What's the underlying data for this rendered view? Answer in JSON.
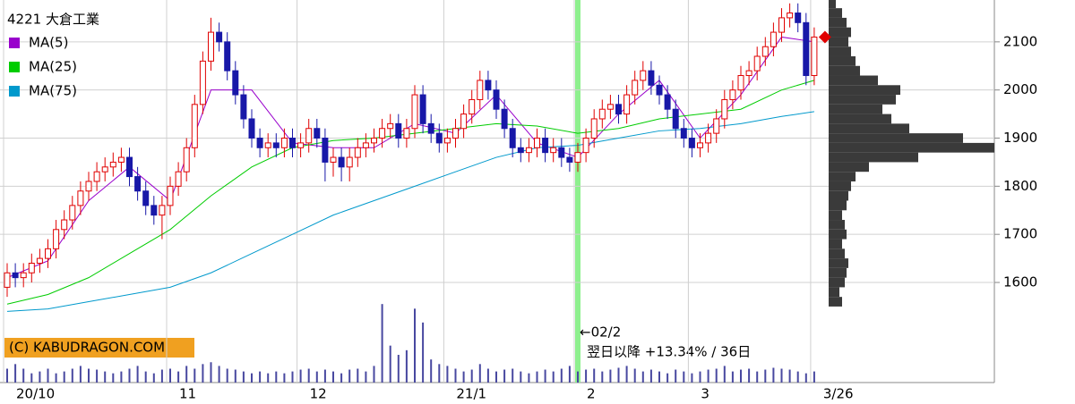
{
  "chart_data": {
    "type": "candlestick",
    "title": "4221 大倉工業",
    "categories": [
      "20/10",
      null,
      null,
      null,
      null,
      null,
      null,
      null,
      null,
      null,
      null,
      null,
      null,
      null,
      null,
      null,
      null,
      null,
      null,
      null,
      "11",
      null,
      null,
      null,
      null,
      null,
      null,
      null,
      null,
      null,
      null,
      null,
      null,
      null,
      null,
      null,
      "12",
      null,
      null,
      null,
      null,
      null,
      null,
      null,
      null,
      null,
      null,
      null,
      null,
      null,
      null,
      null,
      null,
      null,
      "21/1",
      null,
      null,
      null,
      null,
      null,
      null,
      null,
      null,
      null,
      null,
      null,
      null,
      null,
      null,
      null,
      "2",
      null,
      null,
      null,
      null,
      null,
      null,
      null,
      null,
      null,
      null,
      null,
      null,
      null,
      "3",
      null,
      null,
      null,
      null,
      null,
      null,
      null,
      null,
      null,
      null,
      null,
      null,
      null,
      null,
      "3/26"
    ],
    "open": [
      1590,
      1620,
      1610,
      1620,
      1640,
      1650,
      1670,
      1710,
      1730,
      1760,
      1790,
      1810,
      1830,
      1840,
      1850,
      1860,
      1820,
      1790,
      1760,
      1740,
      1760,
      1800,
      1830,
      1880,
      1970,
      2060,
      2120,
      2100,
      2040,
      1990,
      1940,
      1900,
      1880,
      1890,
      1880,
      1900,
      1880,
      1890,
      1920,
      1900,
      1850,
      1860,
      1840,
      1860,
      1880,
      1890,
      1900,
      1920,
      1930,
      1900,
      1920,
      1990,
      1930,
      1910,
      1890,
      1900,
      1920,
      1950,
      1980,
      2020,
      2000,
      1960,
      1920,
      1880,
      1870,
      1880,
      1900,
      1870,
      1880,
      1860,
      1850,
      1870,
      1900,
      1940,
      1960,
      1970,
      1950,
      1990,
      2020,
      2040,
      2010,
      1990,
      1960,
      1920,
      1900,
      1880,
      1890,
      1910,
      1940,
      1980,
      2000,
      2030,
      2040,
      2070,
      2090,
      2120,
      2150,
      2160,
      2140,
      2030
    ],
    "high": [
      1640,
      1640,
      1640,
      1660,
      1670,
      1690,
      1730,
      1750,
      1780,
      1810,
      1830,
      1850,
      1860,
      1870,
      1880,
      1880,
      1840,
      1810,
      1780,
      1780,
      1820,
      1850,
      1900,
      1990,
      2080,
      2150,
      2140,
      2120,
      2060,
      2010,
      1960,
      1920,
      1910,
      1910,
      1920,
      1920,
      1910,
      1940,
      1940,
      1920,
      1880,
      1880,
      1880,
      1900,
      1910,
      1920,
      1940,
      1950,
      1950,
      1940,
      2010,
      2010,
      1950,
      1930,
      1920,
      1940,
      1970,
      2000,
      2040,
      2040,
      2020,
      1980,
      1940,
      1900,
      1900,
      1920,
      1920,
      1900,
      1900,
      1880,
      1890,
      1920,
      1960,
      1980,
      1990,
      1990,
      2010,
      2040,
      2060,
      2060,
      2030,
      2010,
      1980,
      1940,
      1920,
      1910,
      1930,
      1960,
      2000,
      2020,
      2050,
      2060,
      2090,
      2110,
      2140,
      2170,
      2180,
      2180,
      2160,
      2130
    ],
    "low": [
      1570,
      1590,
      1590,
      1600,
      1620,
      1630,
      1650,
      1690,
      1710,
      1740,
      1770,
      1790,
      1810,
      1820,
      1830,
      1800,
      1770,
      1740,
      1720,
      1690,
      1740,
      1780,
      1810,
      1860,
      1950,
      2040,
      2080,
      2020,
      1970,
      1920,
      1880,
      1860,
      1860,
      1860,
      1860,
      1860,
      1860,
      1870,
      1880,
      1810,
      1820,
      1810,
      1810,
      1840,
      1860,
      1870,
      1880,
      1900,
      1880,
      1880,
      1900,
      1910,
      1890,
      1870,
      1870,
      1880,
      1900,
      1930,
      1960,
      1980,
      1940,
      1900,
      1860,
      1850,
      1850,
      1860,
      1850,
      1850,
      1840,
      1830,
      1830,
      1850,
      1880,
      1920,
      1940,
      1930,
      1930,
      1970,
      2000,
      1990,
      1970,
      1940,
      1900,
      1880,
      1860,
      1860,
      1870,
      1890,
      1920,
      1960,
      1980,
      2010,
      2020,
      2050,
      2070,
      2100,
      2130,
      2120,
      2010,
      2010
    ],
    "close": [
      1620,
      1610,
      1620,
      1640,
      1650,
      1670,
      1710,
      1730,
      1760,
      1790,
      1810,
      1830,
      1840,
      1850,
      1860,
      1820,
      1790,
      1760,
      1740,
      1760,
      1800,
      1830,
      1880,
      1970,
      2060,
      2120,
      2100,
      2040,
      1990,
      1940,
      1900,
      1880,
      1890,
      1880,
      1900,
      1880,
      1890,
      1920,
      1900,
      1850,
      1860,
      1840,
      1860,
      1880,
      1890,
      1900,
      1920,
      1930,
      1900,
      1920,
      1990,
      1930,
      1910,
      1890,
      1900,
      1920,
      1950,
      1980,
      2020,
      2000,
      1960,
      1920,
      1880,
      1870,
      1880,
      1900,
      1870,
      1880,
      1860,
      1850,
      1870,
      1900,
      1940,
      1960,
      1970,
      1950,
      1990,
      2020,
      2040,
      2010,
      1990,
      1960,
      1920,
      1900,
      1880,
      1890,
      1910,
      1940,
      1980,
      2000,
      2030,
      2040,
      2070,
      2090,
      2120,
      2150,
      2160,
      2140,
      2030,
      2110
    ],
    "up_color": "#e00000",
    "down_color": "#1818a8",
    "volume": [
      15,
      20,
      15,
      10,
      12,
      15,
      10,
      12,
      15,
      18,
      15,
      14,
      12,
      10,
      12,
      15,
      18,
      12,
      10,
      14,
      15,
      12,
      18,
      15,
      20,
      22,
      18,
      15,
      14,
      12,
      10,
      12,
      10,
      12,
      10,
      12,
      14,
      15,
      12,
      14,
      12,
      10,
      14,
      15,
      12,
      18,
      85,
      40,
      30,
      35,
      80,
      65,
      25,
      20,
      18,
      15,
      12,
      14,
      20,
      15,
      12,
      14,
      15,
      12,
      10,
      12,
      14,
      12,
      15,
      18,
      12,
      14,
      15,
      12,
      14,
      16,
      18,
      15,
      12,
      14,
      12,
      10,
      14,
      12,
      10,
      12,
      14,
      15,
      18,
      12,
      14,
      15,
      12,
      14,
      16,
      15,
      14,
      12,
      10,
      12
    ],
    "volume_lim": [
      0,
      90
    ],
    "volume_color": "#4848a0",
    "series": [
      {
        "name": "MA(5)",
        "color": "#9900cc",
        "x": [
          0,
          5,
          10,
          15,
          20,
          25,
          30,
          35,
          40,
          45,
          50,
          55,
          60,
          65,
          70,
          75,
          80,
          85,
          90,
          95,
          99
        ],
        "values": [
          1610,
          1645,
          1770,
          1840,
          1770,
          2000,
          2000,
          1890,
          1880,
          1880,
          1930,
          1910,
          1990,
          1890,
          1860,
          1950,
          2020,
          1900,
          1990,
          2110,
          2100
        ]
      },
      {
        "name": "MA(25)",
        "color": "#00cc00",
        "x": [
          0,
          5,
          10,
          15,
          20,
          25,
          30,
          35,
          40,
          45,
          50,
          55,
          60,
          65,
          70,
          75,
          80,
          85,
          90,
          95,
          99
        ],
        "values": [
          1555,
          1575,
          1610,
          1660,
          1710,
          1780,
          1840,
          1880,
          1895,
          1900,
          1910,
          1920,
          1930,
          1925,
          1910,
          1920,
          1940,
          1950,
          1960,
          2000,
          2020
        ]
      },
      {
        "name": "MA(75)",
        "color": "#0099cc",
        "x": [
          0,
          5,
          10,
          15,
          20,
          25,
          30,
          35,
          40,
          45,
          50,
          55,
          60,
          65,
          70,
          75,
          80,
          85,
          90,
          95,
          99
        ],
        "values": [
          1540,
          1545,
          1560,
          1575,
          1590,
          1620,
          1660,
          1700,
          1740,
          1770,
          1800,
          1830,
          1860,
          1880,
          1885,
          1900,
          1915,
          1920,
          1930,
          1945,
          1955
        ]
      }
    ],
    "ylim": [
      1392,
      2187
    ],
    "yticks": [
      1600,
      1700,
      1800,
      1900,
      2000,
      2100
    ],
    "grid": true,
    "profile": {
      "prices": [
        1560,
        1580,
        1600,
        1620,
        1640,
        1660,
        1680,
        1700,
        1720,
        1740,
        1760,
        1780,
        1800,
        1820,
        1840,
        1860,
        1880,
        1900,
        1920,
        1940,
        1960,
        1980,
        2000,
        2020,
        2040,
        2060,
        2080,
        2100,
        2120,
        2140,
        2160,
        2180
      ],
      "values": [
        15,
        12,
        18,
        20,
        22,
        18,
        15,
        20,
        18,
        15,
        20,
        22,
        25,
        30,
        45,
        100,
        185,
        150,
        90,
        70,
        60,
        75,
        80,
        55,
        35,
        30,
        25,
        22,
        25,
        20,
        15,
        8
      ],
      "lim": [
        0,
        185
      ],
      "color": "#3a3a3a"
    },
    "highlight": {
      "x": 70,
      "color": "#8ef08e",
      "label": "←02/2",
      "text": "翌日以降 +13.34% / 36日"
    },
    "copyright": "(C) KABUDRAGON.COM"
  }
}
